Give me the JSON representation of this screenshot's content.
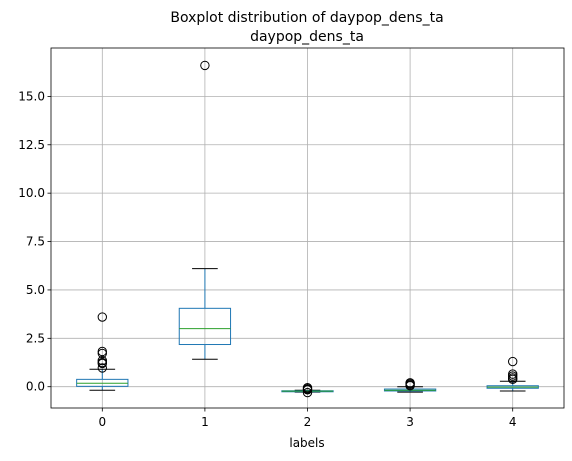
{
  "chart_data": {
    "type": "boxplot",
    "title": "Boxplot distribution of daypop_dens_ta",
    "subtitle": "daypop_dens_ta",
    "xlabel": "labels",
    "ylabel": "",
    "ylim": [
      -1.1,
      17.5
    ],
    "yticks": [
      0.0,
      2.5,
      5.0,
      7.5,
      10.0,
      12.5,
      15.0
    ],
    "ytick_labels": [
      "0.0",
      "2.5",
      "5.0",
      "7.5",
      "10.0",
      "12.5",
      "15.0"
    ],
    "grid": true,
    "categories": [
      "0",
      "1",
      "2",
      "3",
      "4"
    ],
    "boxes": [
      {
        "label": "0",
        "whisker_low": -0.18,
        "q1": 0.02,
        "median": 0.18,
        "q3": 0.38,
        "whisker_high": 0.9,
        "outliers": [
          3.6,
          1.82,
          1.72,
          1.35,
          1.25,
          1.2,
          0.97
        ]
      },
      {
        "label": "1",
        "whisker_low": 1.42,
        "q1": 2.18,
        "median": 3.0,
        "q3": 4.05,
        "whisker_high": 6.1,
        "outliers": [
          16.6
        ]
      },
      {
        "label": "2",
        "whisker_low": -0.28,
        "q1": -0.25,
        "median": -0.23,
        "q3": -0.21,
        "whisker_high": -0.18,
        "outliers": [
          -0.05,
          -0.1,
          -0.14,
          -0.16,
          -0.3
        ]
      },
      {
        "label": "3",
        "whisker_low": -0.28,
        "q1": -0.22,
        "median": -0.18,
        "q3": -0.12,
        "whisker_high": 0.0,
        "outliers": [
          0.2,
          0.15,
          0.1,
          0.05
        ]
      },
      {
        "label": "4",
        "whisker_low": -0.22,
        "q1": -0.08,
        "median": -0.02,
        "q3": 0.05,
        "whisker_high": 0.28,
        "outliers": [
          1.3,
          0.65,
          0.55,
          0.45,
          0.38
        ]
      }
    ],
    "colors": {
      "box": "#1f77b4",
      "median": "#2ca02c",
      "whisker": "#000000",
      "grid": "#b0b0b0"
    }
  }
}
